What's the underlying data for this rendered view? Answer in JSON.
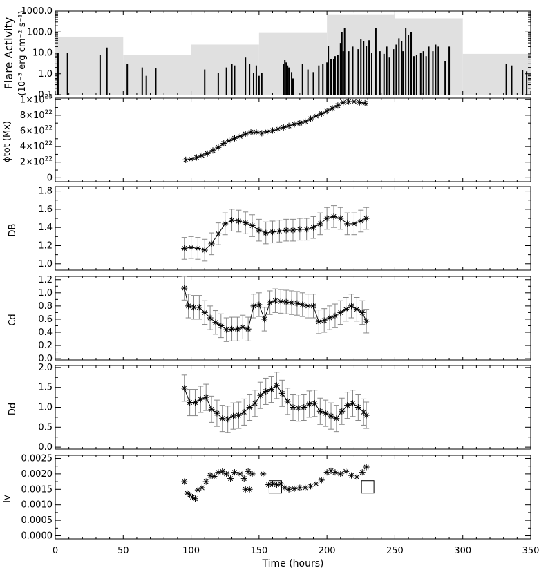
{
  "chart_data": [
    {
      "id": "flare",
      "type": "bar",
      "ylabel_line1": "Flare Activity",
      "ylabel_line2": "(10⁻³ erg cm⁻² s⁻¹)",
      "yscale": "log",
      "ylim": [
        0.1,
        1000.0
      ],
      "yticks": [
        "1000.0",
        "100.0",
        "10.0",
        "1.0",
        "0.1"
      ],
      "ytick_values": [
        1000,
        100,
        10,
        1,
        0.1
      ],
      "xlim": [
        0,
        350
      ],
      "background_steps": [
        {
          "x0": 0,
          "x1": 50,
          "y": 60
        },
        {
          "x0": 50,
          "x1": 100,
          "y": 8
        },
        {
          "x0": 100,
          "x1": 150,
          "y": 25
        },
        {
          "x0": 150,
          "x1": 200,
          "y": 90
        },
        {
          "x0": 200,
          "x1": 250,
          "y": 700
        },
        {
          "x0": 250,
          "x1": 300,
          "y": 450
        },
        {
          "x0": 300,
          "x1": 350,
          "y": 9
        }
      ],
      "flares": [
        [
          2,
          10
        ],
        [
          9,
          10
        ],
        [
          33,
          8
        ],
        [
          38,
          18
        ],
        [
          53,
          3
        ],
        [
          64,
          2
        ],
        [
          67,
          0.8
        ],
        [
          74,
          1.8
        ],
        [
          110,
          1.6
        ],
        [
          120,
          1.1
        ],
        [
          126,
          2
        ],
        [
          130,
          3
        ],
        [
          132,
          2.5
        ],
        [
          140,
          6
        ],
        [
          143,
          3
        ],
        [
          146,
          1.1
        ],
        [
          148,
          2.5
        ],
        [
          150,
          0.8
        ],
        [
          152,
          1.1
        ],
        [
          168,
          3
        ],
        [
          169,
          4.5
        ],
        [
          170,
          3.5
        ],
        [
          171,
          2.5
        ],
        [
          172,
          2
        ],
        [
          174,
          1.2
        ],
        [
          175,
          0.6
        ],
        [
          182,
          3
        ],
        [
          186,
          1.6
        ],
        [
          190,
          1.2
        ],
        [
          194,
          2.5
        ],
        [
          197,
          3
        ],
        [
          200,
          3.5
        ],
        [
          201,
          22
        ],
        [
          203,
          5
        ],
        [
          205,
          5
        ],
        [
          206,
          7
        ],
        [
          208,
          8
        ],
        [
          210,
          30
        ],
        [
          211,
          100
        ],
        [
          212,
          12
        ],
        [
          213,
          150
        ],
        [
          216,
          12
        ],
        [
          219,
          20
        ],
        [
          223,
          15
        ],
        [
          225,
          45
        ],
        [
          227,
          35
        ],
        [
          229,
          22
        ],
        [
          231,
          40
        ],
        [
          233,
          10
        ],
        [
          236,
          150
        ],
        [
          239,
          12
        ],
        [
          242,
          9
        ],
        [
          244,
          20
        ],
        [
          246,
          6
        ],
        [
          249,
          15
        ],
        [
          251,
          25
        ],
        [
          253,
          50
        ],
        [
          255,
          35
        ],
        [
          256,
          12
        ],
        [
          258,
          150
        ],
        [
          260,
          70
        ],
        [
          262,
          100
        ],
        [
          264,
          7
        ],
        [
          266,
          8
        ],
        [
          269,
          10
        ],
        [
          271,
          12
        ],
        [
          273,
          7
        ],
        [
          275,
          20
        ],
        [
          278,
          12
        ],
        [
          280,
          25
        ],
        [
          282,
          20
        ],
        [
          287,
          4
        ],
        [
          290,
          20
        ],
        [
          332,
          3
        ],
        [
          336,
          2.5
        ],
        [
          344,
          1.5
        ],
        [
          347,
          1.3
        ]
      ]
    },
    {
      "id": "phi",
      "type": "line",
      "ylabel": "ϕtot (Mx)",
      "ylim": [
        -5e+21,
        1.02e+23
      ],
      "yticks": [
        {
          "value": 1e+23,
          "mant": "1",
          "exp": "23"
        },
        {
          "value": 8e+22,
          "mant": "8",
          "exp": "22"
        },
        {
          "value": 6e+22,
          "mant": "6",
          "exp": "22"
        },
        {
          "value": 4e+22,
          "mant": "4",
          "exp": "22"
        },
        {
          "value": 2e+22,
          "mant": "2",
          "exp": "22"
        },
        {
          "value": 0,
          "mant": "0",
          "exp": ""
        }
      ],
      "xlim": [
        0,
        350
      ],
      "x": [
        96,
        100,
        104,
        108,
        112,
        116,
        120,
        124,
        128,
        132,
        136,
        140,
        144,
        148,
        152,
        156,
        160,
        164,
        168,
        172,
        176,
        180,
        184,
        188,
        192,
        196,
        200,
        204,
        208,
        212,
        216,
        220,
        224,
        228
      ],
      "y": [
        2.3e+22,
        2.4e+22,
        2.6e+22,
        2.85e+22,
        3.1e+22,
        3.5e+22,
        3.9e+22,
        4.4e+22,
        4.75e+22,
        5.05e+22,
        5.3e+22,
        5.6e+22,
        5.85e+22,
        5.85e+22,
        5.7e+22,
        5.9e+22,
        6.05e+22,
        6.25e+22,
        6.45e+22,
        6.65e+22,
        6.85e+22,
        7e+22,
        7.2e+22,
        7.55e+22,
        7.9e+22,
        8.2e+22,
        8.55e+22,
        8.9e+22,
        9.25e+22,
        9.65e+22,
        9.75e+22,
        9.75e+22,
        9.65e+22,
        9.55e+22
      ]
    },
    {
      "id": "db",
      "type": "line",
      "ylabel": "DB",
      "ylim": [
        0.93,
        1.85
      ],
      "yticks": [
        {
          "value": 1.0,
          "label": "1.0"
        },
        {
          "value": 1.2,
          "label": "1.2"
        },
        {
          "value": 1.4,
          "label": "1.4"
        },
        {
          "value": 1.6,
          "label": "1.6"
        },
        {
          "value": 1.8,
          "label": "1.8"
        }
      ],
      "xlim": [
        0,
        350
      ],
      "x": [
        95,
        100,
        105,
        110,
        115,
        120,
        125,
        130,
        135,
        140,
        145,
        150,
        155,
        160,
        165,
        170,
        175,
        180,
        185,
        190,
        195,
        200,
        205,
        210,
        215,
        220,
        225,
        229
      ],
      "y": [
        1.17,
        1.18,
        1.17,
        1.15,
        1.22,
        1.33,
        1.44,
        1.48,
        1.47,
        1.45,
        1.42,
        1.37,
        1.34,
        1.35,
        1.36,
        1.37,
        1.37,
        1.38,
        1.38,
        1.4,
        1.44,
        1.5,
        1.52,
        1.5,
        1.44,
        1.44,
        1.47,
        1.5
      ],
      "err": 0.12
    },
    {
      "id": "cd",
      "type": "line",
      "ylabel": "Cd",
      "ylim": [
        -0.02,
        1.25
      ],
      "yticks": [
        {
          "value": 0.0,
          "label": "0.0"
        },
        {
          "value": 0.2,
          "label": "0.2"
        },
        {
          "value": 0.4,
          "label": "0.4"
        },
        {
          "value": 0.6,
          "label": "0.6"
        },
        {
          "value": 0.8,
          "label": "0.8"
        },
        {
          "value": 1.0,
          "label": "1.0"
        },
        {
          "value": 1.2,
          "label": "1.2"
        }
      ],
      "xlim": [
        0,
        350
      ],
      "x": [
        95,
        98,
        102,
        106,
        110,
        114,
        118,
        122,
        126,
        130,
        134,
        138,
        142,
        146,
        150,
        154,
        158,
        162,
        166,
        170,
        174,
        178,
        182,
        186,
        190,
        194,
        198,
        202,
        206,
        210,
        214,
        218,
        222,
        226,
        229
      ],
      "y": [
        1.07,
        0.8,
        0.78,
        0.78,
        0.7,
        0.62,
        0.55,
        0.5,
        0.44,
        0.45,
        0.45,
        0.48,
        0.45,
        0.8,
        0.82,
        0.6,
        0.85,
        0.88,
        0.87,
        0.86,
        0.85,
        0.84,
        0.82,
        0.8,
        0.8,
        0.56,
        0.58,
        0.62,
        0.65,
        0.7,
        0.75,
        0.8,
        0.75,
        0.7,
        0.57
      ],
      "err": 0.18
    },
    {
      "id": "dd",
      "type": "line",
      "ylabel": "Dd",
      "ylim": [
        -0.05,
        2.05
      ],
      "yticks": [
        {
          "value": 0.0,
          "label": "0.0"
        },
        {
          "value": 0.5,
          "label": "0.5"
        },
        {
          "value": 1.0,
          "label": "1.0"
        },
        {
          "value": 1.5,
          "label": "1.5"
        },
        {
          "value": 2.0,
          "label": "2.0"
        }
      ],
      "xlim": [
        0,
        350
      ],
      "x": [
        95,
        99,
        103,
        107,
        111,
        115,
        119,
        123,
        127,
        131,
        135,
        139,
        143,
        147,
        151,
        155,
        159,
        163,
        167,
        171,
        175,
        179,
        183,
        187,
        191,
        195,
        199,
        203,
        207,
        211,
        215,
        219,
        223,
        227,
        229
      ],
      "y": [
        1.48,
        1.12,
        1.12,
        1.2,
        1.25,
        0.95,
        0.85,
        0.72,
        0.7,
        0.78,
        0.8,
        0.88,
        1.0,
        1.1,
        1.3,
        1.4,
        1.45,
        1.55,
        1.35,
        1.15,
        1.0,
        0.98,
        1.0,
        1.08,
        1.1,
        0.9,
        0.85,
        0.78,
        0.72,
        0.9,
        1.05,
        1.1,
        1.0,
        0.88,
        0.8
      ],
      "err": 0.33
    },
    {
      "id": "lv",
      "type": "scatter",
      "ylabel": "lv",
      "ylim": [
        -0.0001,
        0.0026
      ],
      "yticks": [
        {
          "value": 0.0,
          "label": "0.0000"
        },
        {
          "value": 0.0005,
          "label": "0.0005"
        },
        {
          "value": 0.001,
          "label": "0.0010"
        },
        {
          "value": 0.0015,
          "label": "0.0015"
        },
        {
          "value": 0.002,
          "label": "0.0020"
        },
        {
          "value": 0.0025,
          "label": "0.0025"
        }
      ],
      "xlim": [
        0,
        350
      ],
      "x": [
        95,
        97,
        99,
        101,
        103,
        105,
        108,
        111,
        114,
        117,
        120,
        123,
        126,
        129,
        132,
        136,
        139,
        142,
        145,
        140,
        143,
        153,
        157,
        160,
        163,
        166,
        169,
        172,
        176,
        180,
        184,
        188,
        192,
        196,
        200,
        203,
        206,
        210,
        214,
        218,
        222,
        226,
        229
      ],
      "y": [
        0.00175,
        0.00138,
        0.00132,
        0.00125,
        0.0012,
        0.00148,
        0.00155,
        0.00175,
        0.00195,
        0.00192,
        0.00205,
        0.00208,
        0.002,
        0.00185,
        0.00205,
        0.002,
        0.00185,
        0.00208,
        0.002,
        0.0015,
        0.0015,
        0.002,
        0.00165,
        0.00168,
        0.00165,
        0.00168,
        0.00155,
        0.0015,
        0.00152,
        0.00155,
        0.00155,
        0.0016,
        0.00168,
        0.0018,
        0.00205,
        0.0021,
        0.00205,
        0.002,
        0.00208,
        0.00195,
        0.0019,
        0.00205,
        0.00222
      ],
      "boxes": [
        [
          162,
          0.00158
        ],
        [
          230,
          0.00158
        ]
      ]
    }
  ],
  "xaxis": {
    "label": "Time (hours)",
    "ticks": [
      "0",
      "50",
      "100",
      "150",
      "200",
      "250",
      "300",
      "350"
    ],
    "tick_values": [
      0,
      50,
      100,
      150,
      200,
      250,
      300,
      350
    ]
  }
}
